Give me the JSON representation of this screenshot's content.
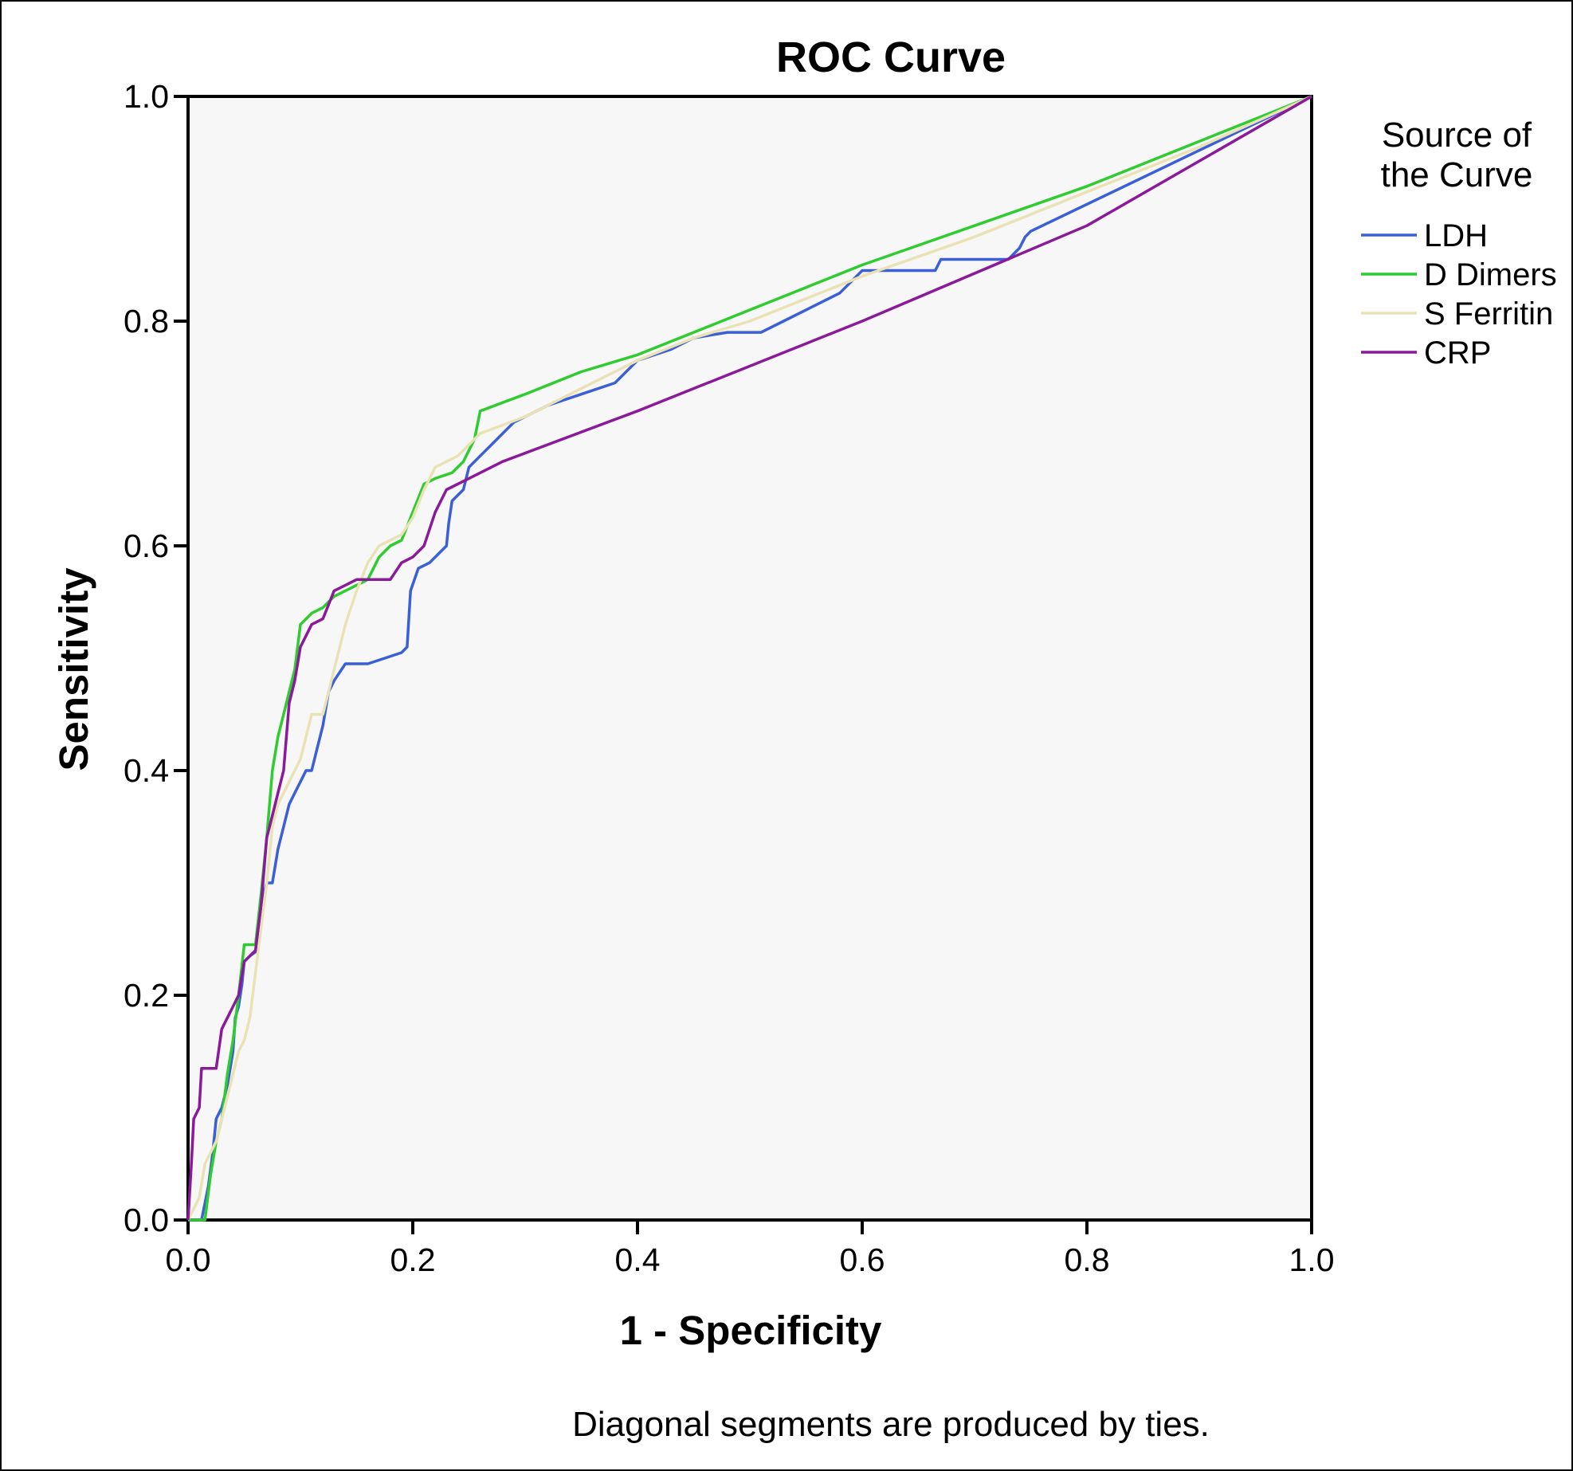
{
  "chart_data": {
    "type": "line",
    "title": "ROC Curve",
    "xlabel": "1 - Specificity",
    "ylabel": "Sensitivity",
    "xlim": [
      0,
      1
    ],
    "ylim": [
      0,
      1
    ],
    "x_ticks": [
      "0.0",
      "0.2",
      "0.4",
      "0.6",
      "0.8",
      "1.0"
    ],
    "y_ticks": [
      "0.0",
      "0.2",
      "0.4",
      "0.6",
      "0.8",
      "1.0"
    ],
    "grid": false,
    "legend": {
      "title": "Source of the Curve",
      "title_lines": [
        "Source of",
        "the Curve"
      ],
      "placement": "right"
    },
    "footnote": "Diagonal segments are produced by ties.",
    "plot_background": "#f7f7f7",
    "series": [
      {
        "name": "LDH",
        "color": "#3a5fd6",
        "points": [
          [
            0.0,
            0.0
          ],
          [
            0.012,
            0.0
          ],
          [
            0.015,
            0.015
          ],
          [
            0.018,
            0.03
          ],
          [
            0.022,
            0.06
          ],
          [
            0.025,
            0.09
          ],
          [
            0.03,
            0.1
          ],
          [
            0.035,
            0.12
          ],
          [
            0.04,
            0.15
          ],
          [
            0.042,
            0.18
          ],
          [
            0.045,
            0.19
          ],
          [
            0.048,
            0.21
          ],
          [
            0.05,
            0.23
          ],
          [
            0.055,
            0.235
          ],
          [
            0.062,
            0.24
          ],
          [
            0.065,
            0.28
          ],
          [
            0.07,
            0.3
          ],
          [
            0.075,
            0.3
          ],
          [
            0.08,
            0.33
          ],
          [
            0.085,
            0.35
          ],
          [
            0.09,
            0.37
          ],
          [
            0.095,
            0.38
          ],
          [
            0.1,
            0.39
          ],
          [
            0.105,
            0.4
          ],
          [
            0.11,
            0.4
          ],
          [
            0.115,
            0.42
          ],
          [
            0.12,
            0.44
          ],
          [
            0.125,
            0.47
          ],
          [
            0.13,
            0.48
          ],
          [
            0.14,
            0.495
          ],
          [
            0.15,
            0.495
          ],
          [
            0.16,
            0.495
          ],
          [
            0.175,
            0.5
          ],
          [
            0.19,
            0.505
          ],
          [
            0.195,
            0.51
          ],
          [
            0.198,
            0.56
          ],
          [
            0.205,
            0.58
          ],
          [
            0.215,
            0.585
          ],
          [
            0.22,
            0.59
          ],
          [
            0.23,
            0.6
          ],
          [
            0.232,
            0.62
          ],
          [
            0.235,
            0.64
          ],
          [
            0.245,
            0.65
          ],
          [
            0.25,
            0.67
          ],
          [
            0.26,
            0.68
          ],
          [
            0.27,
            0.69
          ],
          [
            0.28,
            0.7
          ],
          [
            0.29,
            0.71
          ],
          [
            0.3,
            0.715
          ],
          [
            0.32,
            0.725
          ],
          [
            0.35,
            0.735
          ],
          [
            0.38,
            0.745
          ],
          [
            0.4,
            0.765
          ],
          [
            0.43,
            0.775
          ],
          [
            0.45,
            0.785
          ],
          [
            0.48,
            0.79
          ],
          [
            0.51,
            0.79
          ],
          [
            0.53,
            0.8
          ],
          [
            0.55,
            0.81
          ],
          [
            0.58,
            0.825
          ],
          [
            0.59,
            0.835
          ],
          [
            0.6,
            0.845
          ],
          [
            0.64,
            0.845
          ],
          [
            0.665,
            0.845
          ],
          [
            0.67,
            0.855
          ],
          [
            0.7,
            0.855
          ],
          [
            0.73,
            0.855
          ],
          [
            0.74,
            0.865
          ],
          [
            0.745,
            0.875
          ],
          [
            0.75,
            0.88
          ],
          [
            1.0,
            1.0
          ]
        ]
      },
      {
        "name": "D Dimers",
        "color": "#2fcc2f",
        "points": [
          [
            0.0,
            0.0
          ],
          [
            0.015,
            0.0
          ],
          [
            0.02,
            0.04
          ],
          [
            0.025,
            0.07
          ],
          [
            0.03,
            0.09
          ],
          [
            0.035,
            0.13
          ],
          [
            0.04,
            0.16
          ],
          [
            0.045,
            0.2
          ],
          [
            0.05,
            0.245
          ],
          [
            0.06,
            0.245
          ],
          [
            0.065,
            0.29
          ],
          [
            0.07,
            0.34
          ],
          [
            0.075,
            0.4
          ],
          [
            0.08,
            0.43
          ],
          [
            0.085,
            0.45
          ],
          [
            0.09,
            0.47
          ],
          [
            0.095,
            0.49
          ],
          [
            0.1,
            0.53
          ],
          [
            0.11,
            0.54
          ],
          [
            0.12,
            0.545
          ],
          [
            0.13,
            0.555
          ],
          [
            0.14,
            0.56
          ],
          [
            0.15,
            0.565
          ],
          [
            0.16,
            0.57
          ],
          [
            0.17,
            0.59
          ],
          [
            0.18,
            0.6
          ],
          [
            0.19,
            0.605
          ],
          [
            0.2,
            0.63
          ],
          [
            0.21,
            0.655
          ],
          [
            0.22,
            0.66
          ],
          [
            0.235,
            0.665
          ],
          [
            0.245,
            0.675
          ],
          [
            0.255,
            0.695
          ],
          [
            0.26,
            0.72
          ],
          [
            0.3,
            0.735
          ],
          [
            0.35,
            0.755
          ],
          [
            0.4,
            0.77
          ],
          [
            0.45,
            0.79
          ],
          [
            0.5,
            0.81
          ],
          [
            0.55,
            0.83
          ],
          [
            0.6,
            0.85
          ],
          [
            0.7,
            0.885
          ],
          [
            0.8,
            0.92
          ],
          [
            0.9,
            0.96
          ],
          [
            1.0,
            1.0
          ]
        ]
      },
      {
        "name": "S Ferritin",
        "color": "#e8e2b4",
        "points": [
          [
            0.0,
            0.0
          ],
          [
            0.01,
            0.02
          ],
          [
            0.015,
            0.05
          ],
          [
            0.025,
            0.07
          ],
          [
            0.03,
            0.09
          ],
          [
            0.035,
            0.11
          ],
          [
            0.04,
            0.13
          ],
          [
            0.045,
            0.15
          ],
          [
            0.05,
            0.16
          ],
          [
            0.055,
            0.18
          ],
          [
            0.06,
            0.22
          ],
          [
            0.065,
            0.26
          ],
          [
            0.07,
            0.3
          ],
          [
            0.075,
            0.35
          ],
          [
            0.08,
            0.37
          ],
          [
            0.085,
            0.38
          ],
          [
            0.09,
            0.39
          ],
          [
            0.095,
            0.4
          ],
          [
            0.1,
            0.41
          ],
          [
            0.105,
            0.43
          ],
          [
            0.11,
            0.45
          ],
          [
            0.12,
            0.45
          ],
          [
            0.125,
            0.47
          ],
          [
            0.13,
            0.49
          ],
          [
            0.135,
            0.51
          ],
          [
            0.14,
            0.53
          ],
          [
            0.15,
            0.56
          ],
          [
            0.16,
            0.585
          ],
          [
            0.17,
            0.6
          ],
          [
            0.18,
            0.605
          ],
          [
            0.19,
            0.61
          ],
          [
            0.2,
            0.625
          ],
          [
            0.21,
            0.65
          ],
          [
            0.22,
            0.67
          ],
          [
            0.23,
            0.675
          ],
          [
            0.24,
            0.68
          ],
          [
            0.25,
            0.69
          ],
          [
            0.26,
            0.7
          ],
          [
            0.3,
            0.715
          ],
          [
            0.35,
            0.74
          ],
          [
            0.4,
            0.765
          ],
          [
            0.45,
            0.785
          ],
          [
            0.5,
            0.8
          ],
          [
            0.55,
            0.82
          ],
          [
            0.6,
            0.84
          ],
          [
            0.7,
            0.875
          ],
          [
            0.8,
            0.915
          ],
          [
            0.9,
            0.955
          ],
          [
            1.0,
            1.0
          ]
        ]
      },
      {
        "name": "CRP",
        "color": "#8a1a9a",
        "points": [
          [
            0.0,
            0.0
          ],
          [
            0.003,
            0.05
          ],
          [
            0.005,
            0.09
          ],
          [
            0.01,
            0.1
          ],
          [
            0.012,
            0.135
          ],
          [
            0.025,
            0.135
          ],
          [
            0.03,
            0.17
          ],
          [
            0.035,
            0.18
          ],
          [
            0.04,
            0.19
          ],
          [
            0.045,
            0.2
          ],
          [
            0.05,
            0.23
          ],
          [
            0.06,
            0.24
          ],
          [
            0.065,
            0.28
          ],
          [
            0.07,
            0.34
          ],
          [
            0.075,
            0.36
          ],
          [
            0.08,
            0.38
          ],
          [
            0.085,
            0.4
          ],
          [
            0.09,
            0.46
          ],
          [
            0.095,
            0.48
          ],
          [
            0.1,
            0.51
          ],
          [
            0.11,
            0.53
          ],
          [
            0.12,
            0.535
          ],
          [
            0.13,
            0.56
          ],
          [
            0.14,
            0.565
          ],
          [
            0.15,
            0.57
          ],
          [
            0.16,
            0.57
          ],
          [
            0.18,
            0.57
          ],
          [
            0.19,
            0.585
          ],
          [
            0.2,
            0.59
          ],
          [
            0.21,
            0.6
          ],
          [
            0.22,
            0.63
          ],
          [
            0.23,
            0.65
          ],
          [
            0.25,
            0.66
          ],
          [
            0.28,
            0.675
          ],
          [
            0.4,
            0.72
          ],
          [
            0.6,
            0.8
          ],
          [
            0.8,
            0.885
          ],
          [
            1.0,
            1.0
          ]
        ]
      }
    ]
  }
}
